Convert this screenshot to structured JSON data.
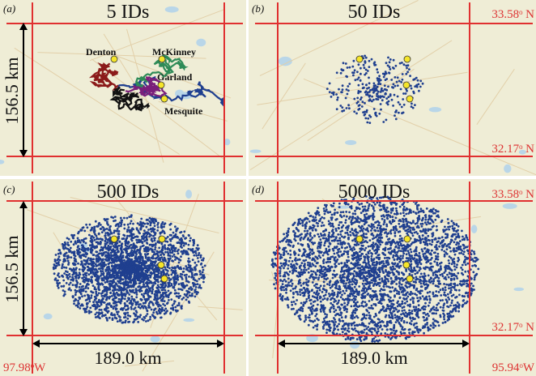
{
  "panels": [
    {
      "id": "a",
      "label": "(a)",
      "title": "5 IDs",
      "ids": 5
    },
    {
      "id": "b",
      "label": "(b)",
      "title": "50 IDs",
      "ids": 50
    },
    {
      "id": "c",
      "label": "(c)",
      "title": "500 IDs",
      "ids": 500
    },
    {
      "id": "d",
      "label": "(d)",
      "title": "5000 IDs",
      "ids": 5000
    }
  ],
  "cities": [
    "Denton",
    "McKinney",
    "Garland",
    "Mesquite"
  ],
  "scale": {
    "height": "156.5 km",
    "width": "189.0 km"
  },
  "coords": {
    "north": "33.58ᵒ N",
    "south": "32.17ᵒ N",
    "west": "97.98ᵒW",
    "east": "95.94ᵒW"
  },
  "colors": {
    "box": "#e03030",
    "points": "#1f3f8f",
    "city_marker": "#f5e52a",
    "map_bg": "#efedd6",
    "track_colors": [
      "#1f3f8f",
      "#2e8b57",
      "#7a1f7a",
      "#8b1a1a",
      "#111111"
    ]
  }
}
